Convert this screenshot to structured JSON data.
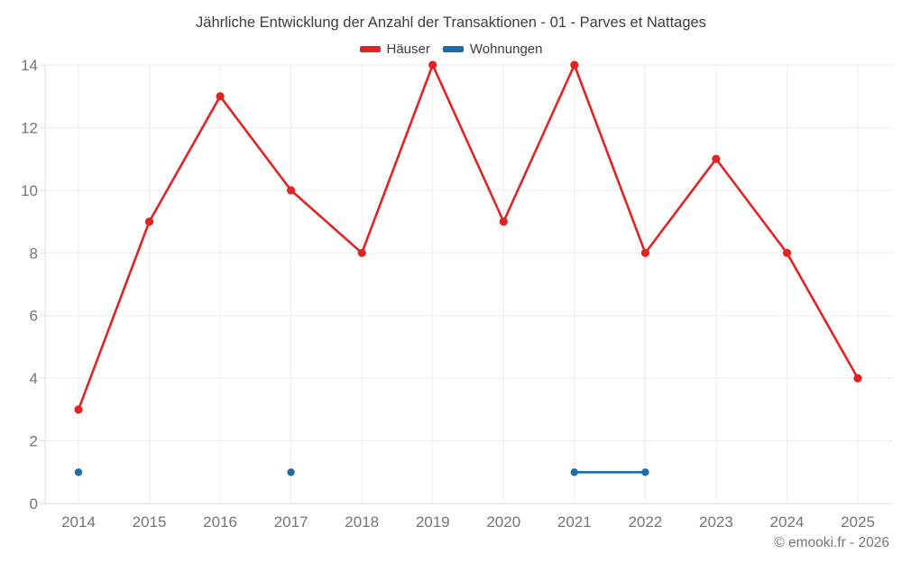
{
  "title": "Jährliche Entwicklung der Anzahl der Transaktionen - 01 - Parves et Nattages",
  "footer": "© emooki.fr - 2026",
  "colors": {
    "haeuser": "#e02424",
    "wohnungen": "#1b6ca8",
    "grid": "#ededed",
    "axis_line": "#dedede",
    "title_text": "#3d3d3d",
    "tick_text": "#757575",
    "footer_text": "#757575",
    "background": "#ffffff"
  },
  "chart_data": {
    "type": "line",
    "title": "Jährliche Entwicklung der Anzahl der Transaktionen - 01 - Parves et Nattages",
    "categories": [
      "2014",
      "2015",
      "2016",
      "2017",
      "2018",
      "2019",
      "2020",
      "2021",
      "2022",
      "2023",
      "2024",
      "2025"
    ],
    "series": [
      {
        "id": "haeuser",
        "name": "Häuser",
        "color": "#e02424",
        "values": [
          3,
          9,
          13,
          10,
          8,
          14,
          9,
          14,
          8,
          11,
          8,
          4
        ]
      },
      {
        "id": "wohnungen",
        "name": "Wohnungen",
        "color": "#1b6ca8",
        "values": [
          1,
          null,
          null,
          1,
          null,
          null,
          null,
          1,
          1,
          null,
          null,
          null
        ]
      }
    ],
    "xlabel": "",
    "ylabel": "",
    "ylim": [
      0,
      14
    ],
    "yticks": [
      0,
      2,
      4,
      6,
      8,
      10,
      12,
      14
    ],
    "grid": true,
    "legend_position": "top",
    "gaps_not_connected": true
  }
}
